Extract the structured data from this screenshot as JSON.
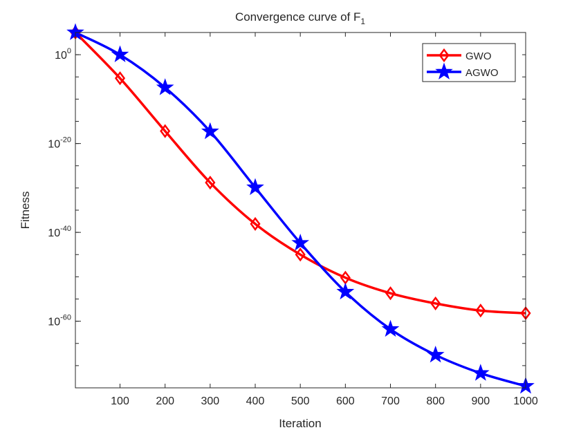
{
  "chart_data": {
    "type": "line",
    "title": "Convergence curve of F",
    "title_subscript": "1",
    "xlabel": "Iteration",
    "ylabel": "Fitness",
    "xlim": [
      1,
      1000
    ],
    "ylim_log10": [
      -75,
      5
    ],
    "yscale": "log",
    "xticks": [
      100,
      200,
      300,
      400,
      500,
      600,
      700,
      800,
      900,
      1000
    ],
    "yticks_log10": [
      0,
      -20,
      -40,
      -60
    ],
    "ytick_base": "10",
    "grid": false,
    "legend_position": "top-right",
    "x": [
      1,
      100,
      200,
      300,
      400,
      500,
      600,
      700,
      800,
      900,
      1000
    ],
    "series": [
      {
        "name": "GWO",
        "color": "#ff0000",
        "marker": "diamond",
        "log10_values": [
          5,
          -5.3,
          -17.2,
          -28.8,
          -38.1,
          -45,
          -50.2,
          -53.7,
          -56,
          -57.6,
          -58.2
        ]
      },
      {
        "name": "AGWO",
        "color": "#0000ff",
        "marker": "star",
        "log10_values": [
          5,
          0,
          -7.4,
          -17.3,
          -29.9,
          -42.4,
          -53.4,
          -61.8,
          -67.6,
          -71.7,
          -74.6
        ]
      }
    ]
  }
}
